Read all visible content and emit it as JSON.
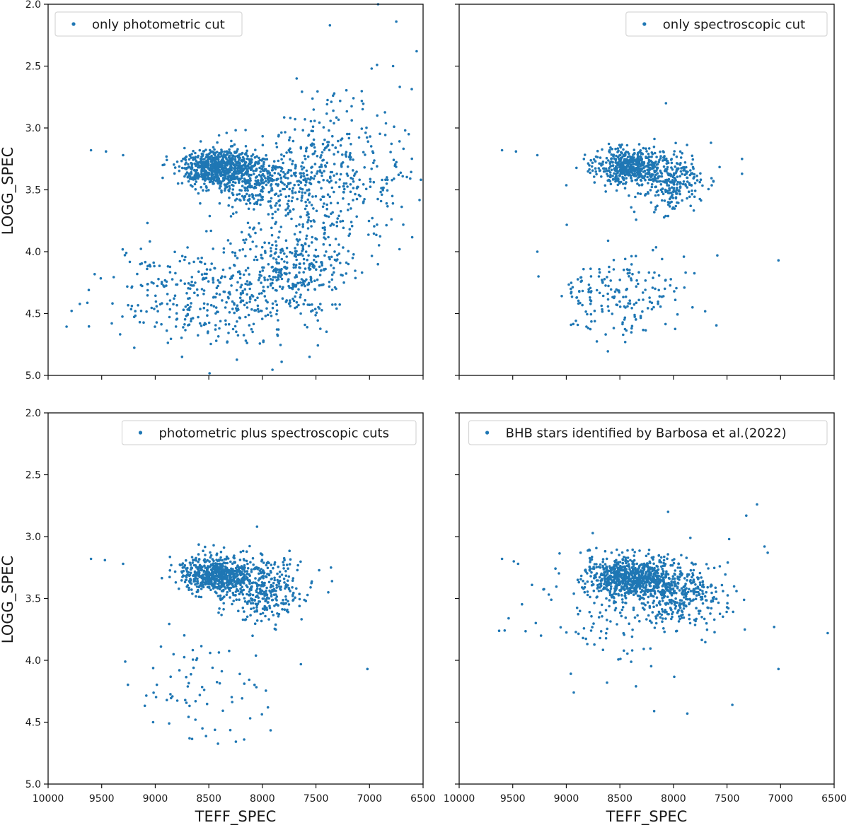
{
  "chart_data": {
    "type": "scatter",
    "color": "#1f77b4",
    "xlabel": "TEFF_SPEC",
    "ylabel": "LOGG_SPEC",
    "xlim": [
      10000,
      6500
    ],
    "ylim": [
      5.0,
      2.0
    ],
    "xticks": [
      10000,
      9500,
      9000,
      8500,
      8000,
      7500,
      7000,
      6500
    ],
    "xtick_labels": [
      "10000",
      "9500",
      "9000",
      "8500",
      "8000",
      "7500",
      "7000",
      "6500"
    ],
    "yticks": [
      2.0,
      2.5,
      3.0,
      3.5,
      4.0,
      4.5,
      5.0
    ],
    "ytick_labels": [
      "2.0",
      "2.5",
      "3.0",
      "3.5",
      "4.0",
      "4.5",
      "5.0"
    ],
    "panels": [
      {
        "legend": "only photometric cut",
        "legend_loc": "upper left",
        "clusters": [
          {
            "teff": 8420,
            "logg": 3.31,
            "s_teff": 170,
            "s_logg": 0.07,
            "n": 650
          },
          {
            "teff": 8050,
            "logg": 3.42,
            "s_teff": 260,
            "s_logg": 0.12,
            "n": 380
          },
          {
            "teff": 7380,
            "logg": 3.4,
            "s_teff": 380,
            "s_logg": 0.3,
            "n": 420
          },
          {
            "teff": 7700,
            "logg": 4.15,
            "s_teff": 260,
            "s_logg": 0.2,
            "n": 300
          },
          {
            "teff": 8450,
            "logg": 4.35,
            "s_teff": 480,
            "s_logg": 0.22,
            "n": 380
          }
        ],
        "points": [
          {
            "teff": 9600,
            "logg": 3.18
          },
          {
            "teff": 9460,
            "logg": 3.19
          },
          {
            "teff": 9300,
            "logg": 3.22
          },
          {
            "teff": 9620,
            "logg": 4.31
          },
          {
            "teff": 9270,
            "logg": 4.01
          },
          {
            "teff": 8750,
            "logg": 4.85
          },
          {
            "teff": 7820,
            "logg": 4.89
          },
          {
            "teff": 7560,
            "logg": 4.85
          },
          {
            "teff": 6920,
            "logg": 2.0
          },
          {
            "teff": 6750,
            "logg": 2.14
          },
          {
            "teff": 6560,
            "logg": 2.38
          },
          {
            "teff": 7370,
            "logg": 2.17
          },
          {
            "teff": 6980,
            "logg": 2.52
          },
          {
            "teff": 6930,
            "logg": 2.49
          },
          {
            "teff": 6780,
            "logg": 2.5
          },
          {
            "teff": 6720,
            "logg": 3.98
          }
        ]
      },
      {
        "legend": "only spectroscopic cut",
        "legend_loc": "upper right",
        "clusters": [
          {
            "teff": 8420,
            "logg": 3.31,
            "s_teff": 160,
            "s_logg": 0.07,
            "n": 500
          },
          {
            "teff": 8020,
            "logg": 3.43,
            "s_teff": 180,
            "s_logg": 0.11,
            "n": 260
          },
          {
            "teff": 8500,
            "logg": 4.33,
            "s_teff": 300,
            "s_logg": 0.16,
            "n": 190
          }
        ],
        "points": [
          {
            "teff": 9600,
            "logg": 3.18
          },
          {
            "teff": 9470,
            "logg": 3.19
          },
          {
            "teff": 9270,
            "logg": 3.22
          },
          {
            "teff": 7020,
            "logg": 4.07
          },
          {
            "teff": 8070,
            "logg": 2.8
          },
          {
            "teff": 9270,
            "logg": 4.0
          },
          {
            "teff": 9260,
            "logg": 4.2
          },
          {
            "teff": 8450,
            "logg": 4.73
          },
          {
            "teff": 7650,
            "logg": 3.12
          },
          {
            "teff": 7360,
            "logg": 3.25
          },
          {
            "teff": 7360,
            "logg": 3.37
          },
          {
            "teff": 7590,
            "logg": 4.03
          }
        ]
      },
      {
        "legend": "photometric plus spectroscopic cuts",
        "legend_loc": "upper right",
        "clusters": [
          {
            "teff": 8420,
            "logg": 3.31,
            "s_teff": 170,
            "s_logg": 0.07,
            "n": 620
          },
          {
            "teff": 8000,
            "logg": 3.42,
            "s_teff": 200,
            "s_logg": 0.12,
            "n": 330
          },
          {
            "teff": 8550,
            "logg": 4.2,
            "s_teff": 350,
            "s_logg": 0.25,
            "n": 70
          }
        ],
        "points": [
          {
            "teff": 9600,
            "logg": 3.18
          },
          {
            "teff": 9470,
            "logg": 3.19
          },
          {
            "teff": 9300,
            "logg": 3.22
          },
          {
            "teff": 9280,
            "logg": 4.01
          },
          {
            "teff": 7020,
            "logg": 4.07
          },
          {
            "teff": 8170,
            "logg": 4.64
          },
          {
            "teff": 8680,
            "logg": 4.63
          },
          {
            "teff": 8050,
            "logg": 2.92
          },
          {
            "teff": 7360,
            "logg": 3.25
          },
          {
            "teff": 7350,
            "logg": 3.36
          },
          {
            "teff": 9020,
            "logg": 4.5
          },
          {
            "teff": 8870,
            "logg": 4.51
          }
        ]
      },
      {
        "legend": "BHB stars identified by Barbosa et al.(2022)",
        "legend_loc": "upper right",
        "clusters": [
          {
            "teff": 8400,
            "logg": 3.33,
            "s_teff": 200,
            "s_logg": 0.08,
            "n": 700
          },
          {
            "teff": 7980,
            "logg": 3.47,
            "s_teff": 200,
            "s_logg": 0.13,
            "n": 380
          },
          {
            "teff": 8500,
            "logg": 3.6,
            "s_teff": 380,
            "s_logg": 0.22,
            "n": 140
          }
        ],
        "points": [
          {
            "teff": 9600,
            "logg": 3.18
          },
          {
            "teff": 9490,
            "logg": 3.2
          },
          {
            "teff": 9450,
            "logg": 3.22
          },
          {
            "teff": 7220,
            "logg": 2.74
          },
          {
            "teff": 7320,
            "logg": 2.83
          },
          {
            "teff": 7480,
            "logg": 3.02
          },
          {
            "teff": 7150,
            "logg": 3.08
          },
          {
            "teff": 7120,
            "logg": 3.13
          },
          {
            "teff": 6560,
            "logg": 3.78
          },
          {
            "teff": 7020,
            "logg": 4.07
          },
          {
            "teff": 7060,
            "logg": 3.73
          },
          {
            "teff": 7450,
            "logg": 4.36
          },
          {
            "teff": 8050,
            "logg": 2.8
          },
          {
            "teff": 8620,
            "logg": 4.18
          },
          {
            "teff": 8180,
            "logg": 4.41
          },
          {
            "teff": 7870,
            "logg": 4.43
          },
          {
            "teff": 8350,
            "logg": 4.21
          },
          {
            "teff": 8930,
            "logg": 4.26
          }
        ]
      }
    ]
  }
}
